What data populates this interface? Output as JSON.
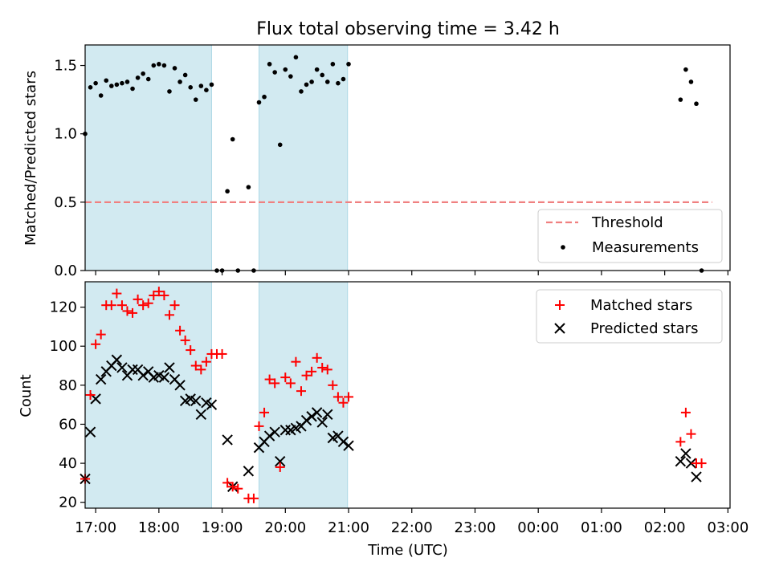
{
  "figure": {
    "title": "Flux total observing time = 3.42 h"
  },
  "colors": {
    "span": "#add8e6",
    "threshold": "#f08080",
    "measurement": "#000000",
    "matched": "#ff0000",
    "predicted": "#000000"
  },
  "chart_data": [
    {
      "type": "scatter",
      "ylabel": "Matched/Predicted stars",
      "xlabel": "",
      "xlim": [
        "16:50",
        "03:02"
      ],
      "ylim": [
        0,
        1.65
      ],
      "yticks": [
        0.0,
        0.5,
        1.0,
        1.5
      ],
      "ytick_labels": [
        "0.0",
        "0.5",
        "1.0",
        "1.5"
      ],
      "shaded_intervals": [
        [
          "16:50",
          "18:50"
        ],
        [
          "19:35",
          "20:59"
        ]
      ],
      "legend": {
        "position": "lower right",
        "entries": [
          "Threshold",
          "Measurements"
        ]
      },
      "threshold": {
        "name": "Threshold",
        "y": 0.5,
        "x": [
          "16:50",
          "02:45"
        ],
        "style": "dashed"
      },
      "series": [
        {
          "name": "Measurements",
          "marker": "dot",
          "points": [
            [
              "16:50",
              1.0
            ],
            [
              "16:55",
              1.34
            ],
            [
              "17:00",
              1.37
            ],
            [
              "17:05",
              1.28
            ],
            [
              "17:10",
              1.39
            ],
            [
              "17:15",
              1.35
            ],
            [
              "17:20",
              1.36
            ],
            [
              "17:25",
              1.37
            ],
            [
              "17:30",
              1.38
            ],
            [
              "17:35",
              1.33
            ],
            [
              "17:40",
              1.41
            ],
            [
              "17:45",
              1.44
            ],
            [
              "17:50",
              1.4
            ],
            [
              "17:55",
              1.5
            ],
            [
              "18:00",
              1.51
            ],
            [
              "18:05",
              1.5
            ],
            [
              "18:10",
              1.31
            ],
            [
              "18:15",
              1.48
            ],
            [
              "18:20",
              1.38
            ],
            [
              "18:25",
              1.43
            ],
            [
              "18:30",
              1.34
            ],
            [
              "18:35",
              1.25
            ],
            [
              "18:40",
              1.35
            ],
            [
              "18:45",
              1.32
            ],
            [
              "18:50",
              1.36
            ],
            [
              "18:55",
              0.0
            ],
            [
              "19:00",
              0.0
            ],
            [
              "19:05",
              0.58
            ],
            [
              "19:10",
              0.96
            ],
            [
              "19:15",
              0.0
            ],
            [
              "19:25",
              0.61
            ],
            [
              "19:30",
              0.0
            ],
            [
              "19:35",
              1.23
            ],
            [
              "19:40",
              1.27
            ],
            [
              "19:45",
              1.51
            ],
            [
              "19:50",
              1.45
            ],
            [
              "19:55",
              0.92
            ],
            [
              "20:00",
              1.47
            ],
            [
              "20:05",
              1.42
            ],
            [
              "20:10",
              1.56
            ],
            [
              "20:15",
              1.31
            ],
            [
              "20:20",
              1.36
            ],
            [
              "20:25",
              1.38
            ],
            [
              "20:30",
              1.47
            ],
            [
              "20:35",
              1.43
            ],
            [
              "20:40",
              1.38
            ],
            [
              "20:45",
              1.51
            ],
            [
              "20:50",
              1.37
            ],
            [
              "20:55",
              1.4
            ],
            [
              "21:00",
              1.51
            ],
            [
              "02:15",
              1.25
            ],
            [
              "02:20",
              1.47
            ],
            [
              "02:25",
              1.38
            ],
            [
              "02:30",
              1.22
            ],
            [
              "02:35",
              0.0
            ]
          ]
        }
      ]
    },
    {
      "type": "scatter",
      "ylabel": "Count",
      "xlabel": "Time (UTC)",
      "xlim": [
        "16:50",
        "03:02"
      ],
      "ylim": [
        17,
        133
      ],
      "yticks": [
        20,
        40,
        60,
        80,
        100,
        120
      ],
      "ytick_labels": [
        "20",
        "40",
        "60",
        "80",
        "100",
        "120"
      ],
      "xticks": [
        "17:00",
        "18:00",
        "19:00",
        "20:00",
        "21:00",
        "22:00",
        "23:00",
        "00:00",
        "01:00",
        "02:00",
        "03:00"
      ],
      "shaded_intervals": [
        [
          "16:50",
          "18:50"
        ],
        [
          "19:35",
          "20:59"
        ]
      ],
      "legend": {
        "position": "upper right",
        "entries": [
          "Matched stars",
          "Predicted stars"
        ]
      },
      "series": [
        {
          "name": "Matched stars",
          "marker": "plus",
          "points": [
            [
              "16:50",
              32
            ],
            [
              "16:55",
              75
            ],
            [
              "17:00",
              101
            ],
            [
              "17:05",
              106
            ],
            [
              "17:10",
              121
            ],
            [
              "17:15",
              121
            ],
            [
              "17:20",
              127
            ],
            [
              "17:25",
              121
            ],
            [
              "17:30",
              118
            ],
            [
              "17:35",
              117
            ],
            [
              "17:40",
              124
            ],
            [
              "17:45",
              121
            ],
            [
              "17:50",
              122
            ],
            [
              "17:55",
              126
            ],
            [
              "18:00",
              128
            ],
            [
              "18:05",
              126
            ],
            [
              "18:10",
              116
            ],
            [
              "18:15",
              121
            ],
            [
              "18:20",
              108
            ],
            [
              "18:25",
              103
            ],
            [
              "18:30",
              98
            ],
            [
              "18:35",
              90
            ],
            [
              "18:40",
              88
            ],
            [
              "18:45",
              92
            ],
            [
              "18:50",
              96
            ],
            [
              "18:55",
              96
            ],
            [
              "19:00",
              96
            ],
            [
              "19:05",
              30
            ],
            [
              "19:10",
              28
            ],
            [
              "19:15",
              27
            ],
            [
              "19:25",
              22
            ],
            [
              "19:30",
              22
            ],
            [
              "19:35",
              59
            ],
            [
              "19:40",
              66
            ],
            [
              "19:45",
              83
            ],
            [
              "19:50",
              81
            ],
            [
              "19:55",
              38
            ],
            [
              "20:00",
              84
            ],
            [
              "20:05",
              81
            ],
            [
              "20:10",
              92
            ],
            [
              "20:15",
              77
            ],
            [
              "20:20",
              85
            ],
            [
              "20:25",
              87
            ],
            [
              "20:30",
              94
            ],
            [
              "20:35",
              89
            ],
            [
              "20:40",
              88
            ],
            [
              "20:45",
              80
            ],
            [
              "20:50",
              74
            ],
            [
              "20:55",
              71
            ],
            [
              "21:00",
              74
            ],
            [
              "02:15",
              51
            ],
            [
              "02:20",
              66
            ],
            [
              "02:25",
              55
            ],
            [
              "02:30",
              40
            ],
            [
              "02:35",
              40
            ]
          ]
        },
        {
          "name": "Predicted stars",
          "marker": "x",
          "points": [
            [
              "16:50",
              32
            ],
            [
              "16:55",
              56
            ],
            [
              "17:00",
              73
            ],
            [
              "17:05",
              83
            ],
            [
              "17:10",
              87
            ],
            [
              "17:15",
              90
            ],
            [
              "17:20",
              93
            ],
            [
              "17:25",
              89
            ],
            [
              "17:30",
              85
            ],
            [
              "17:35",
              88
            ],
            [
              "17:40",
              88
            ],
            [
              "17:45",
              85
            ],
            [
              "17:50",
              87
            ],
            [
              "17:55",
              84
            ],
            [
              "18:00",
              85
            ],
            [
              "18:05",
              84
            ],
            [
              "18:10",
              89
            ],
            [
              "18:15",
              83
            ],
            [
              "18:20",
              80
            ],
            [
              "18:25",
              72
            ],
            [
              "18:30",
              73
            ],
            [
              "18:35",
              72
            ],
            [
              "18:40",
              65
            ],
            [
              "18:45",
              71
            ],
            [
              "18:50",
              70
            ],
            [
              "19:05",
              52
            ],
            [
              "19:10",
              28
            ],
            [
              "19:25",
              36
            ],
            [
              "19:35",
              48
            ],
            [
              "19:40",
              51
            ],
            [
              "19:45",
              54
            ],
            [
              "19:50",
              56
            ],
            [
              "19:55",
              41
            ],
            [
              "20:00",
              57
            ],
            [
              "20:05",
              57
            ],
            [
              "20:10",
              58
            ],
            [
              "20:15",
              59
            ],
            [
              "20:20",
              62
            ],
            [
              "20:25",
              64
            ],
            [
              "20:30",
              66
            ],
            [
              "20:35",
              61
            ],
            [
              "20:40",
              65
            ],
            [
              "20:45",
              53
            ],
            [
              "20:50",
              54
            ],
            [
              "20:55",
              51
            ],
            [
              "21:00",
              49
            ],
            [
              "02:15",
              41
            ],
            [
              "02:20",
              45
            ],
            [
              "02:25",
              40
            ],
            [
              "02:30",
              33
            ]
          ]
        }
      ]
    }
  ]
}
